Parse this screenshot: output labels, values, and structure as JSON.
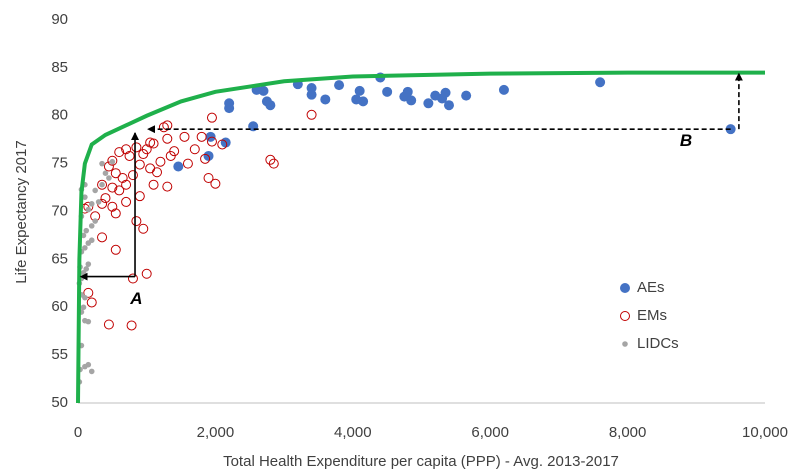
{
  "chart_data": {
    "type": "scatter",
    "x_label": "Total Health Expenditure per capita (PPP) - Avg. 2013-2017",
    "y_label": "Life Expectancy 2017",
    "xlim": [
      0,
      10000
    ],
    "ylim": [
      50,
      90
    ],
    "xticks": [
      0,
      {
        "value": 2000,
        "label": "2,000"
      },
      {
        "value": 4000,
        "label": "4,000"
      },
      {
        "value": 6000,
        "label": "6,000"
      },
      {
        "value": 8000,
        "label": "8,000"
      },
      {
        "value": 10000,
        "label": "10,000"
      }
    ],
    "yticks": [
      50,
      55,
      60,
      65,
      70,
      75,
      80,
      85,
      90
    ],
    "legend": "lower right",
    "series": [
      {
        "name": "AEs",
        "color": "#4472c4",
        "marker": "filled",
        "marker_size": 5,
        "x": [
          1460,
          1900,
          1930,
          2150,
          2200,
          2200,
          2550,
          2600,
          2700,
          2750,
          2800,
          3200,
          3400,
          3400,
          3600,
          3800,
          4050,
          4100,
          4150,
          4400,
          4500,
          4750,
          4800,
          4850,
          5100,
          5200,
          5300,
          5350,
          5400,
          5650,
          6200,
          7600,
          9500
        ],
        "values": [
          74.7,
          75.8,
          77.8,
          77.2,
          80.8,
          81.3,
          78.9,
          82.7,
          82.6,
          81.5,
          81.1,
          83.3,
          82.9,
          82.2,
          81.7,
          83.2,
          81.7,
          82.6,
          81.5,
          84.0,
          82.5,
          82.0,
          82.5,
          81.6,
          81.3,
          82.1,
          81.8,
          82.4,
          81.1,
          82.1,
          82.7,
          83.5,
          78.6
        ]
      },
      {
        "name": "EMs",
        "color": "#c00000",
        "marker": "hollow",
        "marker_size": 4.5,
        "x": [
          800,
          1000,
          850,
          950,
          200,
          150,
          450,
          780,
          550,
          350,
          250,
          100,
          150,
          350,
          400,
          550,
          500,
          500,
          350,
          600,
          700,
          800,
          650,
          550,
          450,
          500,
          600,
          700,
          750,
          850,
          900,
          950,
          1000,
          1050,
          1100,
          1050,
          1100,
          1200,
          1300,
          1250,
          1300,
          1400,
          1350,
          1300,
          1550,
          1600,
          1700,
          1800,
          1850,
          1900,
          2000,
          1950,
          1950,
          2100,
          2800,
          2850,
          3400,
          700,
          900,
          1150
        ],
        "values": [
          63.0,
          63.5,
          69.0,
          68.2,
          60.5,
          61.5,
          58.2,
          58.1,
          66.0,
          67.3,
          69.5,
          70.3,
          70.5,
          70.8,
          71.4,
          69.8,
          70.5,
          72.5,
          72.8,
          72.2,
          72.8,
          73.8,
          73.5,
          74.0,
          74.7,
          75.3,
          76.2,
          76.5,
          75.8,
          76.7,
          74.9,
          76.0,
          76.5,
          77.2,
          77.1,
          74.5,
          72.8,
          75.2,
          77.6,
          78.8,
          79.0,
          76.3,
          75.8,
          72.6,
          77.8,
          75.0,
          76.5,
          77.8,
          75.5,
          73.5,
          72.9,
          79.8,
          77.3,
          77.0,
          75.4,
          75.0,
          80.1,
          71.0,
          71.6,
          74.1
        ]
      },
      {
        "name": "LIDCs",
        "color": "#a5a5a5",
        "marker": "filled",
        "marker_size": 2.8,
        "x": [
          20,
          30,
          150,
          200,
          100,
          50,
          100,
          150,
          50,
          80,
          50,
          100,
          20,
          50,
          80,
          120,
          150,
          30,
          50,
          100,
          150,
          200,
          80,
          120,
          200,
          250,
          50,
          150,
          200,
          300,
          100,
          250,
          350,
          50,
          100,
          400,
          500,
          350,
          450
        ],
        "values": [
          52.2,
          53.5,
          54.0,
          53.3,
          53.8,
          56.0,
          58.6,
          58.5,
          59.5,
          60.0,
          61.3,
          61.0,
          62.5,
          63.0,
          63.6,
          64.0,
          64.5,
          64.2,
          65.8,
          66.2,
          66.7,
          67.0,
          67.5,
          68.0,
          68.5,
          69.0,
          69.5,
          70.2,
          70.8,
          71.0,
          71.5,
          72.2,
          72.8,
          72.3,
          72.8,
          74.0,
          75.2,
          75.0,
          73.5
        ]
      },
      {
        "type": "line",
        "color": "#1fb04b",
        "x": [
          0,
          20,
          50,
          100,
          200,
          400,
          700,
          1000,
          1500,
          2000,
          3000,
          4000,
          6000,
          8000,
          10000
        ],
        "values": [
          50,
          65,
          72,
          75,
          77,
          78,
          79,
          80,
          81.5,
          82.5,
          83.6,
          84.1,
          84.4,
          84.5,
          84.5
        ]
      }
    ],
    "arrows": [
      {
        "x": [
          830,
          40
        ],
        "y": [
          63.2,
          63.2
        ],
        "dashed": false
      },
      {
        "x": [
          830,
          830
        ],
        "y": [
          63.2,
          78.2
        ],
        "dashed": false
      },
      {
        "x": [
          9500,
          1020
        ],
        "y": [
          78.6,
          78.6
        ],
        "dashed": true
      },
      {
        "x": [
          9620,
          9620
        ],
        "y": [
          78.6,
          84.4
        ],
        "dashed": true
      }
    ],
    "annotations": [
      {
        "text": "A",
        "x": 850,
        "y": 60.8
      },
      {
        "text": "B",
        "x": 8850,
        "y": 77.3
      }
    ]
  }
}
